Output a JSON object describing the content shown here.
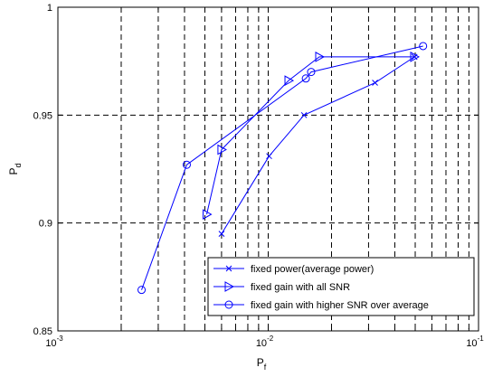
{
  "chart_data": {
    "type": "line",
    "xscale": "log",
    "xlim": [
      0.001,
      0.1
    ],
    "ylim": [
      0.85,
      1.0
    ],
    "grid": true,
    "grid_style": "dashed",
    "legend_position": "lower-right",
    "xlabel": "P",
    "xlabel_sub": "f",
    "ylabel": "P",
    "ylabel_sub": "d",
    "x_ticks": [
      {
        "value": 0.001,
        "base": "10",
        "exp": "-3"
      },
      {
        "value": 0.01,
        "base": "10",
        "exp": "-2"
      },
      {
        "value": 0.1,
        "base": "10",
        "exp": "-1"
      }
    ],
    "y_ticks": [
      {
        "value": 0.85,
        "label": "0.85"
      },
      {
        "value": 0.9,
        "label": "0.9"
      },
      {
        "value": 0.95,
        "label": "0.95"
      },
      {
        "value": 1.0,
        "label": "1"
      }
    ],
    "series": [
      {
        "name": "fixed power(average power)",
        "marker": "x",
        "color": "#0000ff",
        "x": [
          0.006,
          0.0101,
          0.0148,
          0.0322,
          0.0496
        ],
        "y": [
          0.895,
          0.931,
          0.95,
          0.965,
          0.977
        ]
      },
      {
        "name": "fixed gain with all SNR",
        "marker": "triangle-right",
        "color": "#0000ff",
        "x": [
          0.0051,
          0.006,
          0.0125,
          0.0175,
          0.0495
        ],
        "y": [
          0.904,
          0.934,
          0.966,
          0.977,
          0.977
        ]
      },
      {
        "name": "fixed gain with higher SNR over average",
        "marker": "circle",
        "color": "#0000ff",
        "x": [
          0.0025,
          0.0041,
          0.0151,
          0.016,
          0.0545
        ],
        "y": [
          0.869,
          0.927,
          0.967,
          0.97,
          0.982
        ]
      }
    ]
  }
}
